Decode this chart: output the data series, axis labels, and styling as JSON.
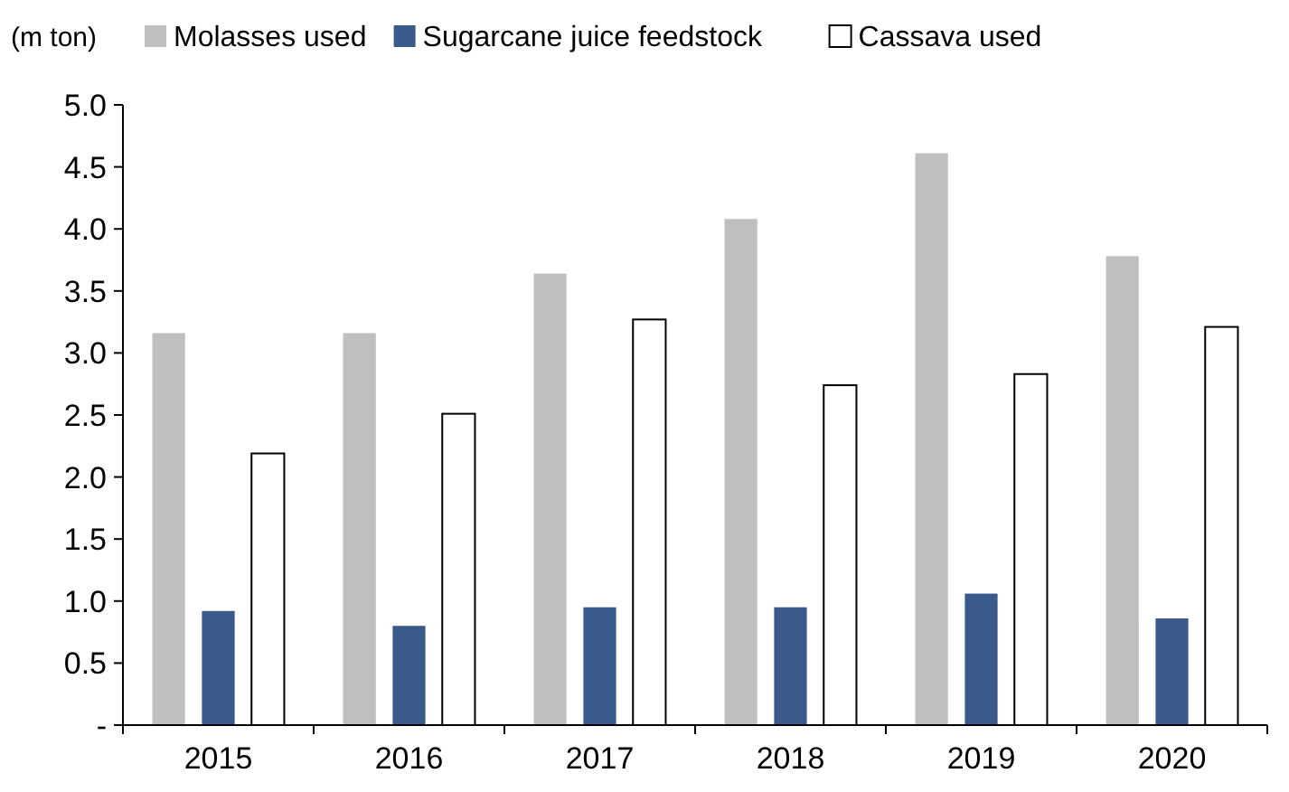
{
  "chart_data": {
    "type": "bar",
    "ylabel": "(m ton)",
    "categories": [
      "2015",
      "2016",
      "2017",
      "2018",
      "2019",
      "2020"
    ],
    "series": [
      {
        "name": "Molasses used",
        "color": "#bfbfbf",
        "values": [
          3.16,
          3.16,
          3.64,
          4.08,
          4.61,
          3.78
        ]
      },
      {
        "name": "Sugarcane juice feedstock",
        "color": "#3a5a8c",
        "values": [
          0.92,
          0.8,
          0.95,
          0.95,
          1.06,
          0.86
        ]
      },
      {
        "name": "Cassava used",
        "color": "#ffffff",
        "values": [
          2.19,
          2.51,
          3.27,
          2.74,
          2.83,
          3.21
        ]
      }
    ],
    "ylim": [
      0,
      5
    ],
    "yticks": [
      {
        "value": 0,
        "label": "-"
      },
      {
        "value": 0.5,
        "label": "0.5"
      },
      {
        "value": 1,
        "label": "1.0"
      },
      {
        "value": 1.5,
        "label": "1.5"
      },
      {
        "value": 2,
        "label": "2.0"
      },
      {
        "value": 2.5,
        "label": "2.5"
      },
      {
        "value": 3,
        "label": "3.0"
      },
      {
        "value": 3.5,
        "label": "3.5"
      },
      {
        "value": 4,
        "label": "4.0"
      },
      {
        "value": 4.5,
        "label": "4.5"
      },
      {
        "value": 5,
        "label": "5.0"
      }
    ],
    "grid": false,
    "legend": "top"
  }
}
